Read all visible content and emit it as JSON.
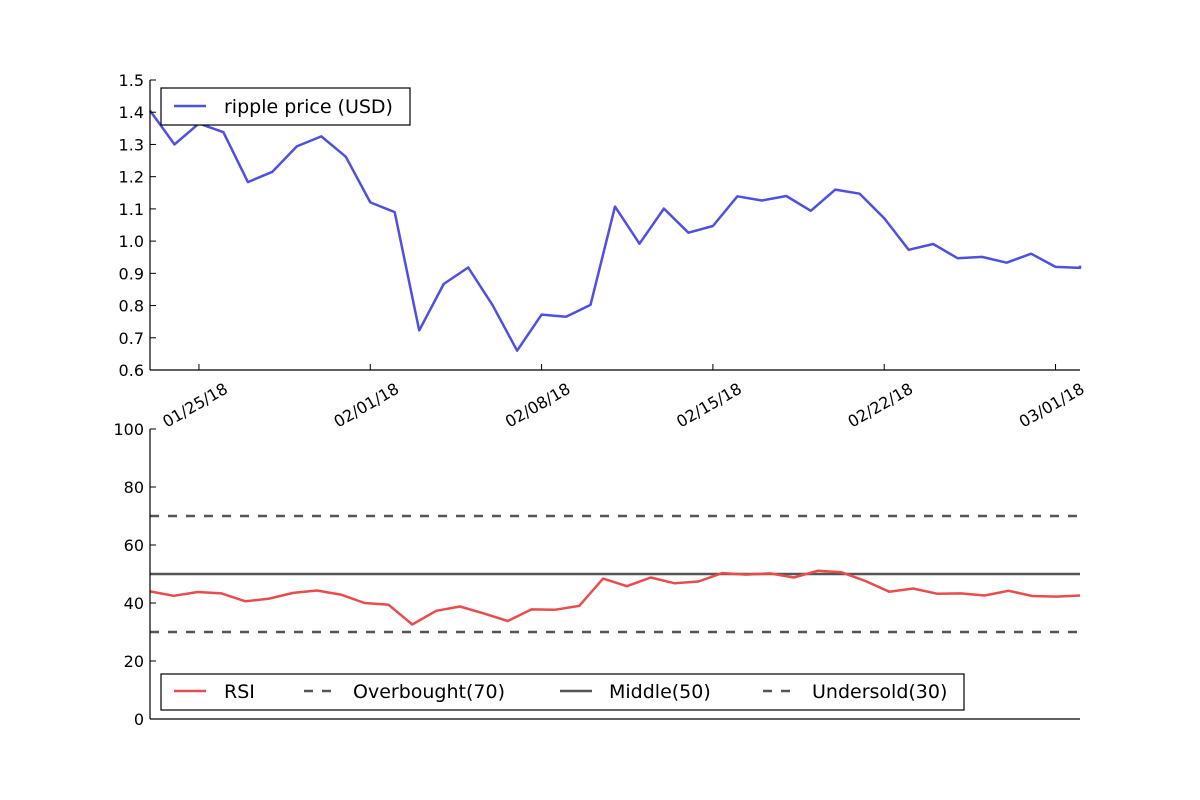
{
  "chart_data": [
    {
      "type": "line",
      "title": "",
      "xlabel": "",
      "ylabel": "",
      "ylim": [
        0.6,
        1.5
      ],
      "yticks": [
        "0.6",
        "0.7",
        "0.8",
        "0.9",
        "1.0",
        "1.1",
        "1.2",
        "1.3",
        "1.4",
        "1.5"
      ],
      "xticks": [
        "01/25/18",
        "02/01/18",
        "02/08/18",
        "02/15/18",
        "02/22/18",
        "03/01/18"
      ],
      "xlim": [
        "2018-01-23",
        "2018-03-02"
      ],
      "legend": "top-left",
      "x": [
        "2018-01-23",
        "2018-01-24",
        "2018-01-25",
        "2018-01-26",
        "2018-01-27",
        "2018-01-28",
        "2018-01-29",
        "2018-01-30",
        "2018-01-31",
        "2018-02-01",
        "2018-02-02",
        "2018-02-03",
        "2018-02-04",
        "2018-02-05",
        "2018-02-06",
        "2018-02-07",
        "2018-02-08",
        "2018-02-09",
        "2018-02-10",
        "2018-02-11",
        "2018-02-12",
        "2018-02-13",
        "2018-02-14",
        "2018-02-15",
        "2018-02-16",
        "2018-02-17",
        "2018-02-18",
        "2018-02-19",
        "2018-02-20",
        "2018-02-21",
        "2018-02-22",
        "2018-02-23",
        "2018-02-24",
        "2018-02-25",
        "2018-02-26",
        "2018-02-27",
        "2018-02-28",
        "2018-03-01",
        "2018-03-02"
      ],
      "series": [
        {
          "name": "ripple price (USD)",
          "color": "#4f4fe0",
          "values": [
            1.405,
            1.3,
            1.365,
            1.338,
            1.183,
            1.215,
            1.294,
            1.325,
            1.262,
            1.12,
            1.09,
            0.723,
            0.867,
            0.918,
            0.801,
            0.66,
            0.772,
            0.765,
            0.802,
            1.107,
            0.992,
            1.101,
            1.026,
            1.047,
            1.139,
            1.126,
            1.14,
            1.094,
            1.16,
            1.147,
            1.071,
            0.973,
            0.991,
            0.947,
            0.951,
            0.933,
            0.961,
            0.92,
            0.917
          ]
        }
      ],
      "last_value": 0.924
    },
    {
      "type": "line",
      "title": "",
      "xlabel": "",
      "ylabel": "",
      "ylim": [
        0,
        100
      ],
      "yticks": [
        "0",
        "20",
        "40",
        "60",
        "80",
        "100"
      ],
      "legend": "bottom-left",
      "series": [
        {
          "name": "RSI",
          "color": "#e84c4c",
          "style": "solid",
          "values": [
            44.0,
            42.5,
            43.8,
            43.3,
            40.6,
            41.5,
            43.5,
            44.3,
            42.9,
            40.0,
            39.4,
            32.6,
            37.3,
            38.8,
            36.4,
            33.8,
            37.8,
            37.7,
            39.0,
            48.4,
            45.8,
            48.8,
            46.8,
            47.4,
            50.3,
            49.8,
            50.2,
            48.8,
            51.1,
            50.6,
            47.6,
            43.9,
            45.0,
            43.2,
            43.3,
            42.6,
            44.2,
            42.4,
            42.2,
            42.6
          ]
        },
        {
          "name": "Overbought(70)",
          "color": "#555555",
          "style": "dashed",
          "level": 70
        },
        {
          "name": "Middle(50)",
          "color": "#555555",
          "style": "solid",
          "level": 50
        },
        {
          "name": "Undersold(30)",
          "color": "#555555",
          "style": "dashed",
          "level": 30
        }
      ]
    }
  ]
}
